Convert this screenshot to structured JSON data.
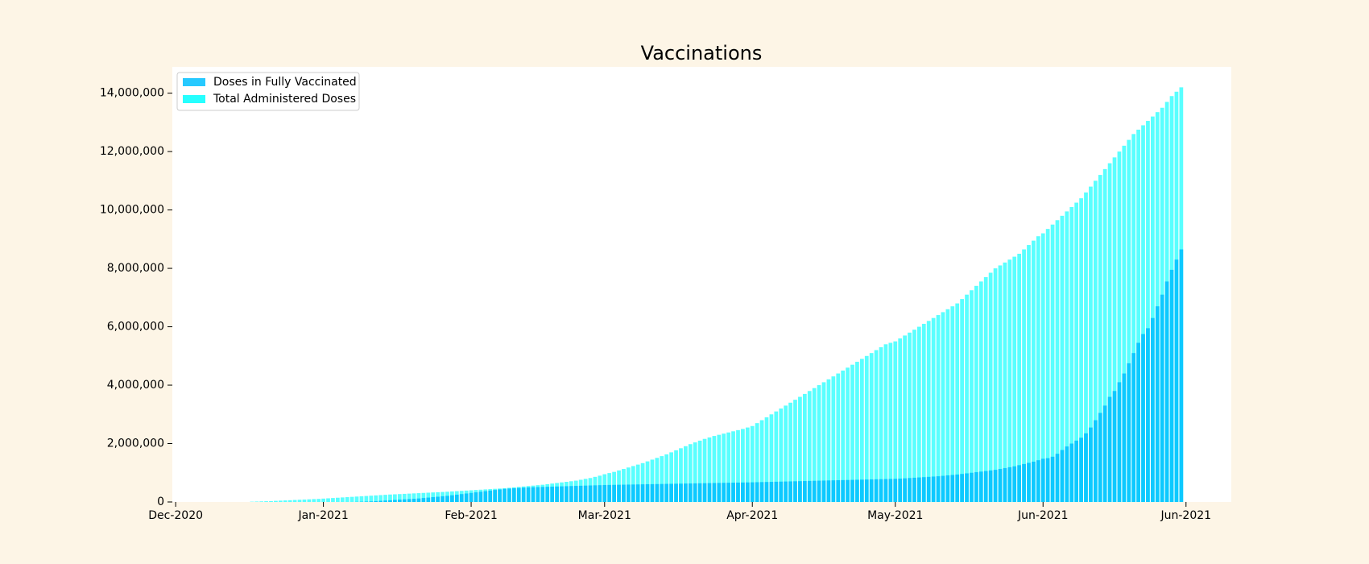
{
  "chart_data": {
    "type": "bar",
    "title": "Vaccinations",
    "x": [
      16,
      17,
      18,
      19,
      20,
      21,
      22,
      23,
      24,
      25,
      26,
      27,
      28,
      29,
      30,
      31,
      32,
      33,
      34,
      35,
      36,
      37,
      38,
      39,
      40,
      41,
      42,
      43,
      44,
      45,
      46,
      47,
      48,
      49,
      50,
      51,
      52,
      53,
      54,
      55,
      56,
      57,
      58,
      59,
      60,
      61,
      62,
      63,
      64,
      65,
      66,
      67,
      68,
      69,
      70,
      71,
      72,
      73,
      74,
      75,
      76,
      77,
      78,
      79,
      80,
      81,
      82,
      83,
      84,
      85,
      86,
      87,
      88,
      89,
      90,
      91,
      92,
      93,
      94,
      95,
      96,
      97,
      98,
      99,
      100,
      101,
      102,
      103,
      104,
      105,
      106,
      107,
      108,
      109,
      110,
      111,
      112,
      113,
      114,
      115,
      116,
      117,
      118,
      119,
      120,
      121,
      122,
      123,
      124,
      125,
      126,
      127,
      128,
      129,
      130,
      131,
      132,
      133,
      134,
      135,
      136,
      137,
      138,
      139,
      140,
      141,
      142,
      143,
      144,
      145,
      146,
      147,
      148,
      149,
      150,
      151,
      152,
      153,
      154,
      155,
      156,
      157,
      158,
      159,
      160,
      161,
      162,
      163,
      164,
      165,
      166,
      167,
      168,
      169,
      170,
      171,
      172,
      173,
      174,
      175,
      176,
      177,
      178,
      179,
      180,
      181,
      182,
      183,
      184,
      185,
      186,
      187,
      188,
      189,
      190,
      191,
      192,
      193,
      194,
      195,
      196,
      197,
      198,
      199,
      200,
      201,
      202,
      203,
      204,
      205,
      206,
      207,
      208,
      209,
      210,
      211
    ],
    "series": [
      {
        "name": "Doses in Fully Vaccinated",
        "color": "#00bfff",
        "values": [
          0,
          0,
          0,
          0,
          0,
          0,
          0,
          0,
          0,
          0,
          0,
          0,
          0,
          0,
          0,
          0,
          0,
          0,
          0,
          0,
          0,
          0,
          5000,
          10000,
          15000,
          20000,
          30000,
          40000,
          50000,
          60000,
          70000,
          80000,
          90000,
          100000,
          110000,
          120000,
          135000,
          150000,
          165000,
          180000,
          195000,
          210000,
          230000,
          250000,
          270000,
          290000,
          310000,
          330000,
          350000,
          370000,
          390000,
          410000,
          430000,
          450000,
          460000,
          470000,
          480000,
          490000,
          500000,
          505000,
          510000,
          515000,
          520000,
          525000,
          530000,
          535000,
          540000,
          545000,
          550000,
          555000,
          560000,
          565000,
          570000,
          575000,
          580000,
          583000,
          586000,
          589000,
          592000,
          595000,
          598000,
          601000,
          604000,
          607000,
          610000,
          613000,
          616000,
          619000,
          622000,
          625000,
          628000,
          631000,
          634000,
          637000,
          640000,
          643000,
          646000,
          649000,
          652000,
          655000,
          658000,
          661000,
          664000,
          667000,
          670000,
          673000,
          677000,
          681000,
          685000,
          689000,
          693000,
          697000,
          701000,
          705000,
          709000,
          713000,
          717000,
          721000,
          725000,
          729000,
          733000,
          737000,
          741000,
          745000,
          749000,
          753000,
          757000,
          761000,
          765000,
          769000,
          773000,
          777000,
          781000,
          785000,
          789000,
          793000,
          800000,
          810000,
          820000,
          830000,
          840000,
          850000,
          860000,
          870000,
          880000,
          895000,
          910000,
          925000,
          940000,
          960000,
          980000,
          1000000,
          1020000,
          1040000,
          1060000,
          1080000,
          1100000,
          1130000,
          1160000,
          1190000,
          1220000,
          1260000,
          1300000,
          1340000,
          1380000,
          1430000,
          1480000,
          1500000,
          1550000,
          1650000,
          1780000,
          1900000,
          2000000,
          2100000,
          2200000,
          2350000,
          2550000,
          2800000,
          3050000,
          3300000,
          3600000,
          3800000,
          4100000,
          4400000,
          4750000,
          5100000,
          5450000,
          5750000,
          5950000,
          6300000,
          6700000,
          7100000,
          7550000,
          7950000,
          8300000,
          8650000
        ]
      },
      {
        "name": "Total Administered Doses",
        "color": "#00ffff",
        "values": [
          10000,
          15000,
          20000,
          25000,
          30000,
          38000,
          45000,
          52000,
          60000,
          68000,
          75000,
          82000,
          90000,
          98000,
          105000,
          115000,
          125000,
          135000,
          145000,
          155000,
          165000,
          175000,
          185000,
          195000,
          205000,
          215000,
          225000,
          235000,
          245000,
          255000,
          262000,
          270000,
          278000,
          286000,
          294000,
          302000,
          310000,
          318000,
          326000,
          334000,
          342000,
          350000,
          360000,
          370000,
          380000,
          390000,
          400000,
          410000,
          420000,
          430000,
          440000,
          450000,
          460000,
          470000,
          485000,
          500000,
          515000,
          530000,
          545000,
          560000,
          575000,
          590000,
          610000,
          630000,
          650000,
          670000,
          690000,
          710000,
          730000,
          760000,
          790000,
          820000,
          860000,
          900000,
          950000,
          990000,
          1030000,
          1080000,
          1130000,
          1180000,
          1230000,
          1280000,
          1330000,
          1390000,
          1450000,
          1510000,
          1570000,
          1630000,
          1700000,
          1770000,
          1840000,
          1910000,
          1980000,
          2040000,
          2100000,
          2160000,
          2210000,
          2260000,
          2300000,
          2340000,
          2380000,
          2420000,
          2460000,
          2500000,
          2550000,
          2600000,
          2700000,
          2800000,
          2900000,
          3000000,
          3100000,
          3200000,
          3300000,
          3400000,
          3500000,
          3600000,
          3700000,
          3800000,
          3900000,
          4000000,
          4100000,
          4200000,
          4300000,
          4400000,
          4500000,
          4600000,
          4700000,
          4800000,
          4900000,
          5000000,
          5100000,
          5200000,
          5300000,
          5400000,
          5450000,
          5500000,
          5600000,
          5700000,
          5800000,
          5900000,
          6000000,
          6100000,
          6200000,
          6300000,
          6400000,
          6500000,
          6600000,
          6700000,
          6800000,
          6950000,
          7100000,
          7250000,
          7400000,
          7550000,
          7700000,
          7850000,
          8000000,
          8100000,
          8200000,
          8300000,
          8400000,
          8500000,
          8650000,
          8800000,
          8950000,
          9100000,
          9200000,
          9350000,
          9500000,
          9650000,
          9800000,
          9950000,
          10100000,
          10250000,
          10400000,
          10600000,
          10800000,
          11000000,
          11200000,
          11400000,
          11600000,
          11800000,
          12000000,
          12200000,
          12400000,
          12600000,
          12750000,
          12900000,
          13050000,
          13200000,
          13350000,
          13500000,
          13700000,
          13900000,
          14050000,
          14200000
        ]
      }
    ],
    "xlim": [
      -0.7,
      221.5
    ],
    "xticks": [
      {
        "value": 0,
        "label": "Dec-2020"
      },
      {
        "value": 31,
        "label": "Jan-2021"
      },
      {
        "value": 62,
        "label": "Feb-2021"
      },
      {
        "value": 90,
        "label": "Mar-2021"
      },
      {
        "value": 121,
        "label": "Apr-2021"
      },
      {
        "value": 151,
        "label": "May-2021"
      },
      {
        "value": 182,
        "label": "Jun-2021"
      },
      {
        "value": 212,
        "label": "Jun-2021"
      }
    ],
    "ylim": [
      0,
      14900000
    ],
    "yticks": [
      0,
      {
        "value": 2000000,
        "label": "2,000,000"
      },
      {
        "value": 4000000,
        "label": "4,000,000"
      },
      {
        "value": 6000000,
        "label": "6,000,000"
      },
      {
        "value": 8000000,
        "label": "8,000,000"
      },
      {
        "value": 10000000,
        "label": "10,000,000"
      },
      {
        "value": 12000000,
        "label": "12,000,000"
      },
      {
        "value": 14000000,
        "label": "14,000,000"
      }
    ],
    "legend": "upper left",
    "grid": false
  }
}
